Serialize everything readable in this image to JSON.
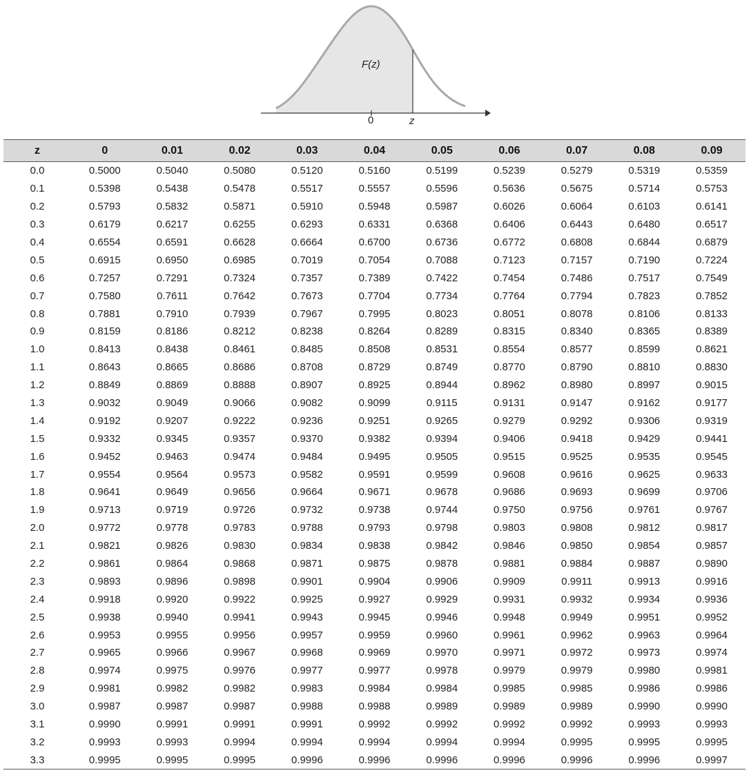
{
  "figure": {
    "curve_label": "F(z)",
    "origin_label": "0",
    "z_label": "z"
  },
  "table": {
    "headers": [
      "z",
      "0",
      "0.01",
      "0.02",
      "0.03",
      "0.04",
      "0.05",
      "0.06",
      "0.07",
      "0.08",
      "0.09"
    ],
    "rows": [
      [
        "0.0",
        "0.5000",
        "0.5040",
        "0.5080",
        "0.5120",
        "0.5160",
        "0.5199",
        "0.5239",
        "0.5279",
        "0.5319",
        "0.5359"
      ],
      [
        "0.1",
        "0.5398",
        "0.5438",
        "0.5478",
        "0.5517",
        "0.5557",
        "0.5596",
        "0.5636",
        "0.5675",
        "0.5714",
        "0.5753"
      ],
      [
        "0.2",
        "0.5793",
        "0.5832",
        "0.5871",
        "0.5910",
        "0.5948",
        "0.5987",
        "0.6026",
        "0.6064",
        "0.6103",
        "0.6141"
      ],
      [
        "0.3",
        "0.6179",
        "0.6217",
        "0.6255",
        "0.6293",
        "0.6331",
        "0.6368",
        "0.6406",
        "0.6443",
        "0.6480",
        "0.6517"
      ],
      [
        "0.4",
        "0.6554",
        "0.6591",
        "0.6628",
        "0.6664",
        "0.6700",
        "0.6736",
        "0.6772",
        "0.6808",
        "0.6844",
        "0.6879"
      ],
      [
        "0.5",
        "0.6915",
        "0.6950",
        "0.6985",
        "0.7019",
        "0.7054",
        "0.7088",
        "0.7123",
        "0.7157",
        "0.7190",
        "0.7224"
      ],
      [
        "0.6",
        "0.7257",
        "0.7291",
        "0.7324",
        "0.7357",
        "0.7389",
        "0.7422",
        "0.7454",
        "0.7486",
        "0.7517",
        "0.7549"
      ],
      [
        "0.7",
        "0.7580",
        "0.7611",
        "0.7642",
        "0.7673",
        "0.7704",
        "0.7734",
        "0.7764",
        "0.7794",
        "0.7823",
        "0.7852"
      ],
      [
        "0.8",
        "0.7881",
        "0.7910",
        "0.7939",
        "0.7967",
        "0.7995",
        "0.8023",
        "0.8051",
        "0.8078",
        "0.8106",
        "0.8133"
      ],
      [
        "0.9",
        "0.8159",
        "0.8186",
        "0.8212",
        "0.8238",
        "0.8264",
        "0.8289",
        "0.8315",
        "0.8340",
        "0.8365",
        "0.8389"
      ],
      [
        "1.0",
        "0.8413",
        "0.8438",
        "0.8461",
        "0.8485",
        "0.8508",
        "0.8531",
        "0.8554",
        "0.8577",
        "0.8599",
        "0.8621"
      ],
      [
        "1.1",
        "0.8643",
        "0.8665",
        "0.8686",
        "0.8708",
        "0.8729",
        "0.8749",
        "0.8770",
        "0.8790",
        "0.8810",
        "0.8830"
      ],
      [
        "1.2",
        "0.8849",
        "0.8869",
        "0.8888",
        "0.8907",
        "0.8925",
        "0.8944",
        "0.8962",
        "0.8980",
        "0.8997",
        "0.9015"
      ],
      [
        "1.3",
        "0.9032",
        "0.9049",
        "0.9066",
        "0.9082",
        "0.9099",
        "0.9115",
        "0.9131",
        "0.9147",
        "0.9162",
        "0.9177"
      ],
      [
        "1.4",
        "0.9192",
        "0.9207",
        "0.9222",
        "0.9236",
        "0.9251",
        "0.9265",
        "0.9279",
        "0.9292",
        "0.9306",
        "0.9319"
      ],
      [
        "1.5",
        "0.9332",
        "0.9345",
        "0.9357",
        "0.9370",
        "0.9382",
        "0.9394",
        "0.9406",
        "0.9418",
        "0.9429",
        "0.9441"
      ],
      [
        "1.6",
        "0.9452",
        "0.9463",
        "0.9474",
        "0.9484",
        "0.9495",
        "0.9505",
        "0.9515",
        "0.9525",
        "0.9535",
        "0.9545"
      ],
      [
        "1.7",
        "0.9554",
        "0.9564",
        "0.9573",
        "0.9582",
        "0.9591",
        "0.9599",
        "0.9608",
        "0.9616",
        "0.9625",
        "0.9633"
      ],
      [
        "1.8",
        "0.9641",
        "0.9649",
        "0.9656",
        "0.9664",
        "0.9671",
        "0.9678",
        "0.9686",
        "0.9693",
        "0.9699",
        "0.9706"
      ],
      [
        "1.9",
        "0.9713",
        "0.9719",
        "0.9726",
        "0.9732",
        "0.9738",
        "0.9744",
        "0.9750",
        "0.9756",
        "0.9761",
        "0.9767"
      ],
      [
        "2.0",
        "0.9772",
        "0.9778",
        "0.9783",
        "0.9788",
        "0.9793",
        "0.9798",
        "0.9803",
        "0.9808",
        "0.9812",
        "0.9817"
      ],
      [
        "2.1",
        "0.9821",
        "0.9826",
        "0.9830",
        "0.9834",
        "0.9838",
        "0.9842",
        "0.9846",
        "0.9850",
        "0.9854",
        "0.9857"
      ],
      [
        "2.2",
        "0.9861",
        "0.9864",
        "0.9868",
        "0.9871",
        "0.9875",
        "0.9878",
        "0.9881",
        "0.9884",
        "0.9887",
        "0.9890"
      ],
      [
        "2.3",
        "0.9893",
        "0.9896",
        "0.9898",
        "0.9901",
        "0.9904",
        "0.9906",
        "0.9909",
        "0.9911",
        "0.9913",
        "0.9916"
      ],
      [
        "2.4",
        "0.9918",
        "0.9920",
        "0.9922",
        "0.9925",
        "0.9927",
        "0.9929",
        "0.9931",
        "0.9932",
        "0.9934",
        "0.9936"
      ],
      [
        "2.5",
        "0.9938",
        "0.9940",
        "0.9941",
        "0.9943",
        "0.9945",
        "0.9946",
        "0.9948",
        "0.9949",
        "0.9951",
        "0.9952"
      ],
      [
        "2.6",
        "0.9953",
        "0.9955",
        "0.9956",
        "0.9957",
        "0.9959",
        "0.9960",
        "0.9961",
        "0.9962",
        "0.9963",
        "0.9964"
      ],
      [
        "2.7",
        "0.9965",
        "0.9966",
        "0.9967",
        "0.9968",
        "0.9969",
        "0.9970",
        "0.9971",
        "0.9972",
        "0.9973",
        "0.9974"
      ],
      [
        "2.8",
        "0.9974",
        "0.9975",
        "0.9976",
        "0.9977",
        "0.9977",
        "0.9978",
        "0.9979",
        "0.9979",
        "0.9980",
        "0.9981"
      ],
      [
        "2.9",
        "0.9981",
        "0.9982",
        "0.9982",
        "0.9983",
        "0.9984",
        "0.9984",
        "0.9985",
        "0.9985",
        "0.9986",
        "0.9986"
      ],
      [
        "3.0",
        "0.9987",
        "0.9987",
        "0.9987",
        "0.9988",
        "0.9988",
        "0.9989",
        "0.9989",
        "0.9989",
        "0.9990",
        "0.9990"
      ],
      [
        "3.1",
        "0.9990",
        "0.9991",
        "0.9991",
        "0.9991",
        "0.9992",
        "0.9992",
        "0.9992",
        "0.9992",
        "0.9993",
        "0.9993"
      ],
      [
        "3.2",
        "0.9993",
        "0.9993",
        "0.9994",
        "0.9994",
        "0.9994",
        "0.9994",
        "0.9994",
        "0.9995",
        "0.9995",
        "0.9995"
      ],
      [
        "3.3",
        "0.9995",
        "0.9995",
        "0.9995",
        "0.9996",
        "0.9996",
        "0.9996",
        "0.9996",
        "0.9996",
        "0.9996",
        "0.9997"
      ]
    ]
  }
}
